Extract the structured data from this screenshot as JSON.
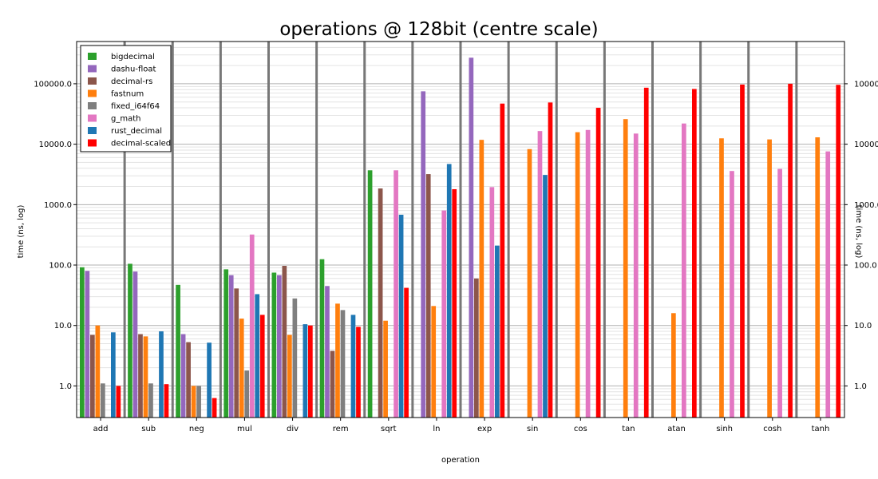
{
  "chart_data": {
    "type": "bar",
    "title": "operations @ 128bit (centre scale)",
    "xlabel": "operation",
    "ylabel": "time (ns, log)",
    "yscale": "log",
    "ylim": [
      0.3,
      500000
    ],
    "yticks": [
      "1.0",
      "10.0",
      "100.0",
      "1000.0",
      "10000.0",
      "100000.0"
    ],
    "yticks_right": [
      "1.0",
      "10.0",
      "100.0",
      "1000.0",
      "10000.0",
      "100000"
    ],
    "grid": true,
    "legend_position": "top-left",
    "categories": [
      "add",
      "sub",
      "neg",
      "mul",
      "div",
      "rem",
      "sqrt",
      "ln",
      "exp",
      "sin",
      "cos",
      "tan",
      "atan",
      "sinh",
      "cosh",
      "tanh"
    ],
    "series": [
      {
        "name": "bigdecimal",
        "color": "#2ca02c",
        "values": [
          92,
          105,
          47,
          85,
          75,
          125,
          3700,
          null,
          null,
          null,
          null,
          null,
          null,
          null,
          null,
          null
        ]
      },
      {
        "name": "dashu-float",
        "color": "#9467bd",
        "values": [
          80,
          78,
          7.2,
          68,
          68,
          45,
          null,
          75000,
          270000,
          null,
          null,
          null,
          null,
          null,
          null,
          null
        ]
      },
      {
        "name": "decimal-rs",
        "color": "#8c564b",
        "values": [
          7,
          7.2,
          5.3,
          41,
          97,
          3.8,
          1850,
          3200,
          60,
          null,
          null,
          null,
          null,
          null,
          null,
          null
        ]
      },
      {
        "name": "fastnum",
        "color": "#ff7f0e",
        "values": [
          10,
          6.6,
          1.0,
          13,
          7,
          23,
          12,
          21,
          11800,
          8300,
          15800,
          26000,
          16,
          12500,
          12000,
          13000
        ]
      },
      {
        "name": "fixed_i64f64",
        "color": "#7f7f7f",
        "values": [
          1.1,
          1.1,
          1.0,
          1.8,
          28,
          18,
          null,
          null,
          null,
          null,
          null,
          null,
          null,
          null,
          null,
          null
        ]
      },
      {
        "name": "g_math",
        "color": "#e377c2",
        "values": [
          null,
          null,
          null,
          320,
          null,
          null,
          3700,
          800,
          1950,
          16500,
          17200,
          15000,
          22000,
          3600,
          3900,
          7600
        ]
      },
      {
        "name": "rust_decimal",
        "color": "#1f77b4",
        "values": [
          7.7,
          8,
          5.2,
          33,
          10.5,
          15,
          680,
          4700,
          210,
          3100,
          null,
          null,
          null,
          null,
          null,
          null
        ]
      },
      {
        "name": "decimal-scaled",
        "color": "#ff0000",
        "values": [
          1.0,
          1.07,
          0.63,
          15,
          10,
          9.5,
          42,
          1800,
          47000,
          49000,
          40000,
          86000,
          82000,
          97000,
          100000,
          96000
        ]
      }
    ]
  }
}
